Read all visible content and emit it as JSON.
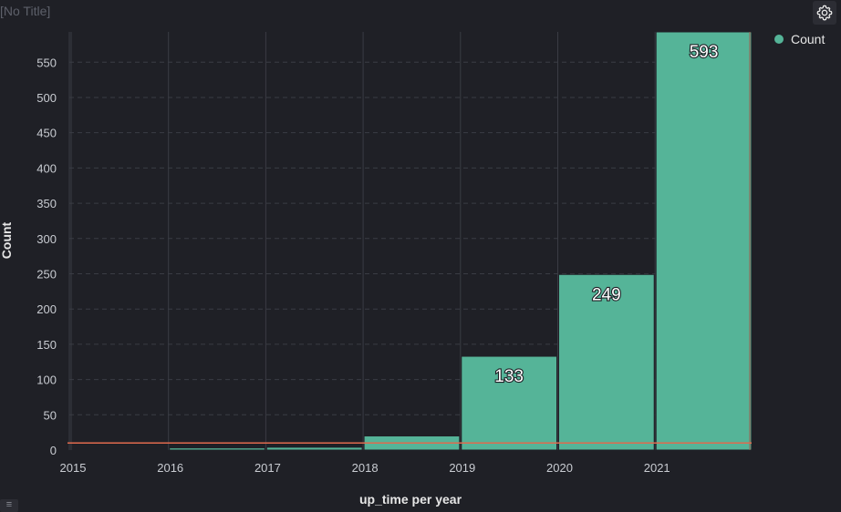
{
  "page": {
    "title": "[No Title]"
  },
  "controls": {
    "settings_icon": "gear-icon",
    "menu_icon": "list-icon",
    "menu_glyph": "≡"
  },
  "colors": {
    "background": "#1f2026",
    "bar": "#55b498",
    "bar_stroke": "#1f2026",
    "reference_line": "#e06a4e",
    "gridline": "#3a3c44",
    "tick_label": "#c9ccd2",
    "value_label": "#ffffff"
  },
  "chart_data": {
    "type": "bar",
    "title": "",
    "xlabel": "up_time per year",
    "ylabel": "Count",
    "x_ticks": [
      "2015",
      "2016",
      "2017",
      "2018",
      "2019",
      "2020",
      "2021"
    ],
    "y_ticks": [
      0,
      50,
      100,
      150,
      200,
      250,
      300,
      350,
      400,
      450,
      500,
      550
    ],
    "ylim": [
      0,
      593
    ],
    "grid": true,
    "legend": {
      "position": "top-right",
      "entries": [
        "Count"
      ]
    },
    "series": [
      {
        "name": "Count",
        "bins": [
          {
            "year": "2015",
            "value": 1,
            "label": ""
          },
          {
            "year": "2016",
            "value": 3,
            "label": ""
          },
          {
            "year": "2017",
            "value": 4,
            "label": ""
          },
          {
            "year": "2018",
            "value": 20,
            "label": ""
          },
          {
            "year": "2019",
            "value": 133,
            "label": "133"
          },
          {
            "year": "2020",
            "value": 249,
            "label": "249"
          },
          {
            "year": "2021",
            "value": 593,
            "label": "593"
          }
        ]
      }
    ],
    "reference_line": {
      "value": 10
    }
  }
}
